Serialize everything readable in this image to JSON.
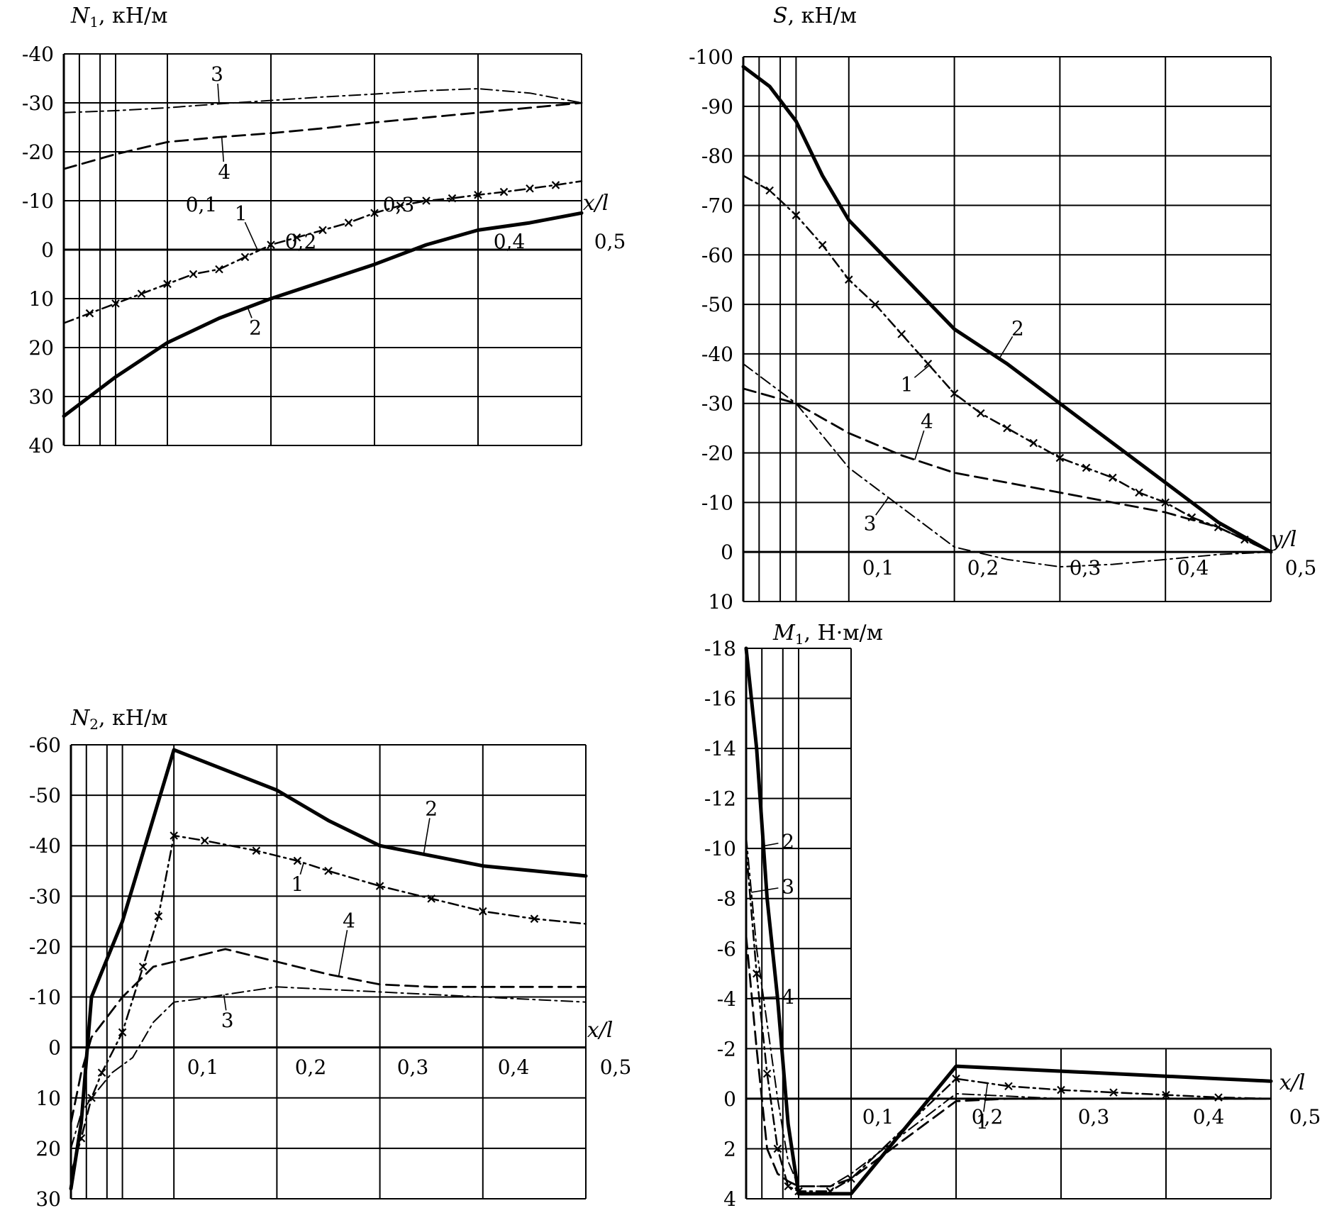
{
  "chart_data": [
    {
      "id": "n1",
      "type": "line",
      "title_sym": "N",
      "title_sub": "1",
      "title_unit": ", кН/м",
      "xlabel": "x/l",
      "ylim": [
        -40,
        40
      ],
      "xlim": [
        0,
        0.5
      ],
      "y_ticks": [
        "-40",
        "-30",
        "-20",
        "-10",
        "0",
        "10",
        "20",
        "30",
        "40"
      ],
      "x_ticks": [
        "0,1",
        "0,2",
        "0,3",
        "0,4",
        "0,5"
      ],
      "series": [
        {
          "name": "1",
          "x": [
            0,
            0.025,
            0.05,
            0.075,
            0.1,
            0.125,
            0.15,
            0.175,
            0.2,
            0.225,
            0.25,
            0.275,
            0.3,
            0.325,
            0.35,
            0.375,
            0.4,
            0.425,
            0.45,
            0.475,
            0.5
          ],
          "y": [
            15,
            13,
            11,
            9,
            7,
            5,
            4,
            1.5,
            -1,
            -2.5,
            -4,
            -5.5,
            -7.5,
            -9,
            -10,
            -10.5,
            -11.2,
            -11.8,
            -12.5,
            -13.2,
            -14
          ]
        },
        {
          "name": "2",
          "x": [
            0,
            0.025,
            0.05,
            0.1,
            0.15,
            0.2,
            0.25,
            0.3,
            0.35,
            0.4,
            0.45,
            0.5
          ],
          "y": [
            34,
            30,
            26,
            19,
            14,
            10,
            6.5,
            3,
            -1,
            -4,
            -5.5,
            -7.5
          ]
        },
        {
          "name": "3",
          "x": [
            0,
            0.05,
            0.1,
            0.15,
            0.2,
            0.25,
            0.3,
            0.35,
            0.4,
            0.45,
            0.5
          ],
          "y": [
            -28,
            -28.4,
            -29,
            -29.8,
            -30.5,
            -31.2,
            -31.8,
            -32.5,
            -32.9,
            -32,
            -30
          ]
        },
        {
          "name": "4",
          "x": [
            0,
            0.025,
            0.05,
            0.1,
            0.15,
            0.2,
            0.25,
            0.3,
            0.35,
            0.4,
            0.45,
            0.5
          ],
          "y": [
            -16.5,
            -18,
            -19.5,
            -22,
            -23,
            -23.8,
            -24.8,
            -26,
            -27,
            -28,
            -29,
            -30
          ]
        }
      ],
      "labels": [
        {
          "text": "3",
          "x": 0.148,
          "y": -34.5
        },
        {
          "text": "4",
          "x": 0.155,
          "y": -14.5
        },
        {
          "text": "1",
          "x": 0.171,
          "y": -6
        },
        {
          "text": "2",
          "x": 0.185,
          "y": 17.3
        }
      ]
    },
    {
      "id": "s",
      "type": "line",
      "title_sym": "S",
      "title_sub": "",
      "title_unit": ", кН/м",
      "xlabel": "y/l",
      "ylim": [
        -100,
        10
      ],
      "xlim": [
        0,
        0.5
      ],
      "y_ticks": [
        "-100",
        "-90",
        "-80",
        "-70",
        "-60",
        "-50",
        "-40",
        "-30",
        "-20",
        "-10",
        "0",
        "10"
      ],
      "x_ticks": [
        "0,1",
        "0,2",
        "0,3",
        "0,4",
        "0,5"
      ],
      "series": [
        {
          "name": "1",
          "x": [
            0,
            0.025,
            0.05,
            0.075,
            0.1,
            0.125,
            0.15,
            0.175,
            0.2,
            0.225,
            0.25,
            0.275,
            0.3,
            0.325,
            0.35,
            0.375,
            0.4,
            0.425,
            0.45,
            0.475,
            0.5
          ],
          "y": [
            -76,
            -73,
            -68,
            -62,
            -55,
            -50,
            -44,
            -38,
            -32,
            -28,
            -25,
            -22,
            -19,
            -17,
            -15,
            -12,
            -10,
            -7,
            -5,
            -2.5,
            0
          ]
        },
        {
          "name": "2",
          "x": [
            0,
            0.025,
            0.05,
            0.075,
            0.1,
            0.15,
            0.2,
            0.25,
            0.3,
            0.35,
            0.4,
            0.45,
            0.5
          ],
          "y": [
            -98,
            -94,
            -87,
            -76,
            -67,
            -56,
            -45,
            -38,
            -30,
            -22,
            -14,
            -6,
            0
          ]
        },
        {
          "name": "3",
          "x": [
            0,
            0.05,
            0.1,
            0.15,
            0.2,
            0.25,
            0.3,
            0.35,
            0.4,
            0.45,
            0.5
          ],
          "y": [
            -38,
            -30,
            -17,
            -9,
            -1,
            1.5,
            3,
            2.5,
            1.5,
            0.5,
            0
          ]
        },
        {
          "name": "4",
          "x": [
            0,
            0.05,
            0.1,
            0.15,
            0.2,
            0.25,
            0.3,
            0.35,
            0.4,
            0.45,
            0.5
          ],
          "y": [
            -33,
            -30,
            -24,
            -19.5,
            -16,
            -14,
            -12,
            -10,
            -8,
            -5,
            0
          ]
        }
      ],
      "labels": [
        {
          "text": "2",
          "x": 0.26,
          "y": -43.8
        },
        {
          "text": "1",
          "x": 0.155,
          "y": -32.5
        },
        {
          "text": "4",
          "x": 0.174,
          "y": -25
        },
        {
          "text": "3",
          "x": 0.12,
          "y": -4.4
        }
      ]
    },
    {
      "id": "n2",
      "type": "line",
      "title_sym": "N",
      "title_sub": "2",
      "title_unit": ", кН/м",
      "xlabel": "x/l",
      "ylim": [
        -60,
        30
      ],
      "xlim": [
        0,
        0.5
      ],
      "y_ticks": [
        "-60",
        "-50",
        "-40",
        "-30",
        "-20",
        "-10",
        "0",
        "10",
        "20",
        "30"
      ],
      "x_ticks": [
        "0,1",
        "0,2",
        "0,3",
        "0,4",
        "0,5"
      ],
      "series": [
        {
          "name": "1",
          "x": [
            0,
            0.01,
            0.02,
            0.03,
            0.05,
            0.07,
            0.085,
            0.1,
            0.13,
            0.18,
            0.22,
            0.25,
            0.3,
            0.35,
            0.4,
            0.45,
            0.5
          ],
          "y": [
            25,
            18,
            10,
            5,
            -3,
            -16,
            -26,
            -42,
            -41,
            -39,
            -37,
            -35,
            -32,
            -29.5,
            -27,
            -25.5,
            -24.5
          ]
        },
        {
          "name": "2",
          "x": [
            0,
            0.01,
            0.02,
            0.05,
            0.1,
            0.15,
            0.2,
            0.25,
            0.3,
            0.35,
            0.4,
            0.45,
            0.5
          ],
          "y": [
            28,
            15,
            -10,
            -25,
            -59,
            -55,
            -51,
            -45,
            -40,
            -38,
            -36,
            -35,
            -34
          ]
        },
        {
          "name": "3",
          "x": [
            0,
            0.01,
            0.02,
            0.04,
            0.06,
            0.08,
            0.1,
            0.12,
            0.15,
            0.2,
            0.3,
            0.4,
            0.5
          ],
          "y": [
            20,
            13,
            10,
            5,
            2,
            -5,
            -9,
            -9.5,
            -10.5,
            -12,
            -11,
            -10,
            -9
          ]
        },
        {
          "name": "4",
          "x": [
            0,
            0.01,
            0.02,
            0.05,
            0.08,
            0.1,
            0.15,
            0.2,
            0.25,
            0.3,
            0.35,
            0.4,
            0.45,
            0.5
          ],
          "y": [
            15,
            5,
            -2,
            -10,
            -16,
            -17,
            -19.5,
            -17,
            -14.5,
            -12.5,
            -12,
            -12,
            -12,
            -12
          ]
        }
      ],
      "labels": [
        {
          "text": "2",
          "x": 0.35,
          "y": -46
        },
        {
          "text": "1",
          "x": 0.22,
          "y": -31
        },
        {
          "text": "4",
          "x": 0.27,
          "y": -23.8
        },
        {
          "text": "3",
          "x": 0.152,
          "y": -4
        }
      ]
    },
    {
      "id": "m1",
      "type": "line",
      "title_sym": "M",
      "title_sub": "1",
      "title_unit": ", Н·м/м",
      "xlabel": "x/l",
      "ylim": [
        -18,
        4
      ],
      "xlim": [
        0,
        0.5
      ],
      "y_ticks": [
        "-18",
        "-16",
        "-14",
        "-12",
        "-10",
        "-8",
        "-6",
        "-4",
        "-2",
        "0",
        "2",
        "4"
      ],
      "x_ticks": [
        "0,1",
        "0,2",
        "0,3",
        "0,4",
        "0,5"
      ],
      "series": [
        {
          "name": "1",
          "x": [
            0,
            0.01,
            0.02,
            0.03,
            0.04,
            0.05,
            0.08,
            0.1,
            0.2,
            0.25,
            0.3,
            0.35,
            0.4,
            0.45,
            0.5
          ],
          "y": [
            -10,
            -5,
            -1,
            2,
            3.5,
            3.7,
            3.7,
            3.2,
            -0.8,
            -0.5,
            -0.35,
            -0.25,
            -0.15,
            -0.05,
            0
          ]
        },
        {
          "name": "2",
          "x": [
            0,
            0.01,
            0.02,
            0.03,
            0.04,
            0.05,
            0.08,
            0.1,
            0.2,
            0.25,
            0.3,
            0.35,
            0.4,
            0.45,
            0.5
          ],
          "y": [
            -18,
            -14,
            -8,
            -4,
            1,
            3.8,
            3.8,
            3.8,
            -1.3,
            -1.2,
            -1.1,
            -1,
            -0.9,
            -0.8,
            -0.7
          ]
        },
        {
          "name": "3",
          "x": [
            0,
            0.01,
            0.02,
            0.03,
            0.04,
            0.05,
            0.08,
            0.1,
            0.2,
            0.25,
            0.3,
            0.35,
            0.4,
            0.45,
            0.5
          ],
          "y": [
            -10.5,
            -6,
            -3,
            0,
            2.5,
            3.5,
            3.5,
            3,
            -0.2,
            -0.1,
            0,
            0,
            0,
            0,
            0
          ]
        },
        {
          "name": "4",
          "x": [
            0,
            0.01,
            0.02,
            0.03,
            0.04,
            0.05,
            0.08,
            0.1,
            0.2,
            0.25,
            0.3,
            0.35,
            0.4,
            0.45,
            0.5
          ],
          "y": [
            -6.5,
            -2,
            2,
            3,
            3.3,
            3.5,
            3.5,
            3.2,
            0.1,
            0,
            0,
            0,
            0,
            0,
            0
          ]
        }
      ],
      "labels": [
        {
          "text": "2",
          "x": 0.04,
          "y": -10
        },
        {
          "text": "3",
          "x": 0.04,
          "y": -8.2
        },
        {
          "text": "4",
          "x": 0.04,
          "y": -3.8
        },
        {
          "text": "1",
          "x": 0.225,
          "y": 1.2
        }
      ]
    }
  ]
}
